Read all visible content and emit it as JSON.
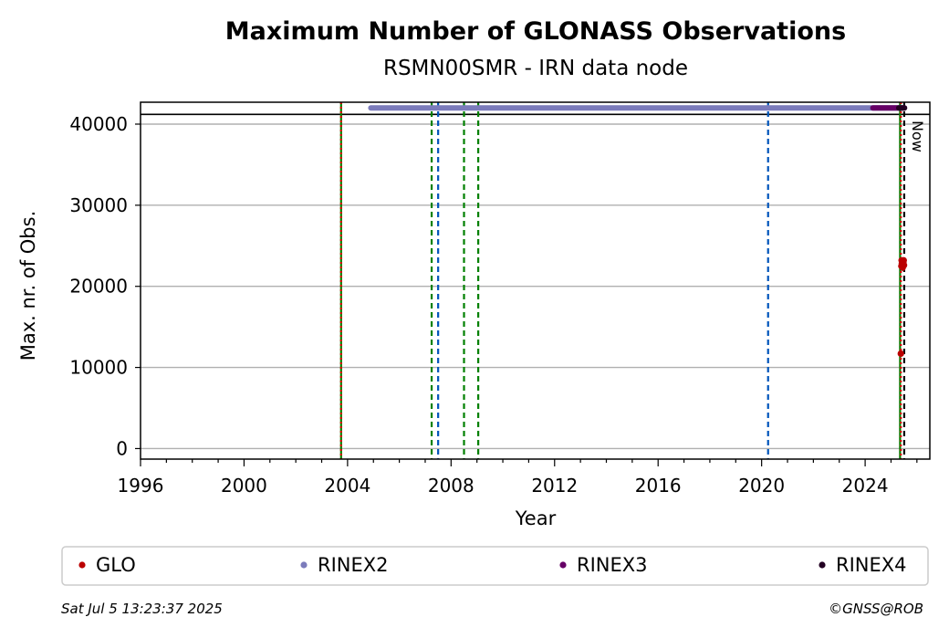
{
  "chart_data": {
    "type": "scatter",
    "title": "Maximum Number of GLONASS Observations",
    "subtitle": "RSMN00SMR - IRN data node",
    "xlabel": "Year",
    "ylabel": "Max. nr. of Obs.",
    "xlim": [
      1996,
      2026.5
    ],
    "ylim": [
      -1300,
      42700
    ],
    "x_ticks": [
      "1996",
      "2000",
      "2004",
      "2008",
      "2012",
      "2016",
      "2020",
      "2024"
    ],
    "y_ticks": [
      "0",
      "10000",
      "20000",
      "30000",
      "40000"
    ],
    "grid": "y",
    "legend_placement": "bottom",
    "reference_hline": 41200,
    "now_label": "Now",
    "now_x": 2025.51,
    "series": [
      {
        "name": "GLO",
        "color": "#bb0000",
        "points": [
          [
            2025.38,
            11700
          ],
          [
            2025.4,
            22500
          ],
          [
            2025.41,
            23200
          ],
          [
            2025.42,
            22800
          ],
          [
            2025.44,
            23000
          ],
          [
            2025.45,
            22300
          ],
          [
            2025.46,
            23100
          ],
          [
            2025.47,
            22700
          ],
          [
            2025.48,
            22900
          ],
          [
            2025.49,
            23200
          ],
          [
            2025.5,
            22600
          ]
        ]
      },
      {
        "name": "RINEX2",
        "color": "#7b7bbb",
        "range": [
          2004.9,
          2025.45
        ],
        "y": 42000
      },
      {
        "name": "RINEX3",
        "color": "#660066",
        "range": [
          2024.3,
          2025.52
        ],
        "y": 42000
      },
      {
        "name": "RINEX4",
        "color": "#220022",
        "range": [
          2025.3,
          2025.52
        ],
        "y": 42000
      }
    ],
    "vlines": [
      {
        "x": 2003.75,
        "color": "#008000",
        "style": "solid"
      },
      {
        "x": 2003.75,
        "color": "#dd0000",
        "style": "dotted"
      },
      {
        "x": 2007.25,
        "color": "#008000",
        "style": "dashed"
      },
      {
        "x": 2007.5,
        "color": "#0055bb",
        "style": "dashed"
      },
      {
        "x": 2008.5,
        "color": "#008000",
        "style": "dashed"
      },
      {
        "x": 2009.05,
        "color": "#008000",
        "style": "dashed"
      },
      {
        "x": 2020.25,
        "color": "#0055bb",
        "style": "dashed"
      },
      {
        "x": 2025.35,
        "color": "#008000",
        "style": "solid"
      },
      {
        "x": 2025.38,
        "color": "#dd0000",
        "style": "dotted"
      },
      {
        "x": 2025.51,
        "color": "#000000",
        "style": "dashed"
      }
    ]
  },
  "footer": {
    "timestamp": "Sat Jul  5 13:23:37 2025",
    "copyright": "©GNSS@ROB"
  }
}
